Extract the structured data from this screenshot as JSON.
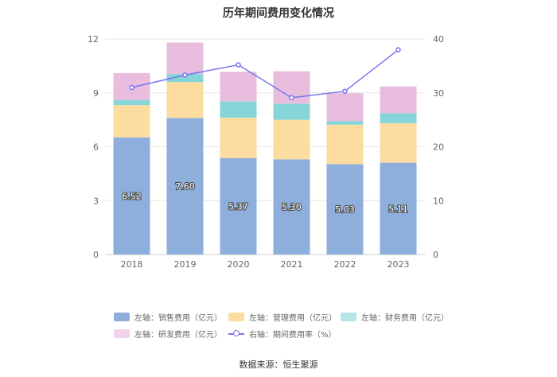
{
  "chart_data": {
    "type": "bar",
    "title": "历年期间费用变化情况",
    "categories": [
      "2018",
      "2019",
      "2020",
      "2021",
      "2022",
      "2023"
    ],
    "stacked": true,
    "y_left": {
      "ylim": [
        0,
        12
      ],
      "ticks": [
        "0",
        "3",
        "6",
        "9",
        "12"
      ]
    },
    "y_right": {
      "ylim": [
        0,
        40
      ],
      "ticks": [
        "0",
        "10",
        "20",
        "30",
        "40"
      ]
    },
    "series": [
      {
        "name": "左轴：销售费用（亿元）",
        "color": "#8eaedc",
        "values": [
          6.52,
          7.6,
          5.37,
          5.3,
          5.03,
          5.11
        ],
        "labels": [
          "6.52",
          "7.60",
          "5.37",
          "5.30",
          "5.03",
          "5.11"
        ]
      },
      {
        "name": "左轴：管理费用（亿元）",
        "color": "#fddca0",
        "values": [
          1.8,
          2.0,
          2.25,
          2.2,
          2.2,
          2.2
        ]
      },
      {
        "name": "左轴：财务费用（亿元）",
        "color": "#86d6d9",
        "values": [
          0.28,
          0.45,
          0.9,
          0.9,
          0.2,
          0.55
        ]
      },
      {
        "name": "左轴：研发费用（亿元）",
        "color": "#e8bddd",
        "values": [
          1.5,
          1.75,
          1.65,
          1.8,
          1.55,
          1.5
        ]
      },
      {
        "name": "右轴：期间费用率（%）",
        "type": "line",
        "axis": "right",
        "color": "#7b73f0",
        "values": [
          31.0,
          33.3,
          35.2,
          29.1,
          30.3,
          38.0
        ]
      }
    ],
    "source": "数据来源：恒生聚源"
  }
}
